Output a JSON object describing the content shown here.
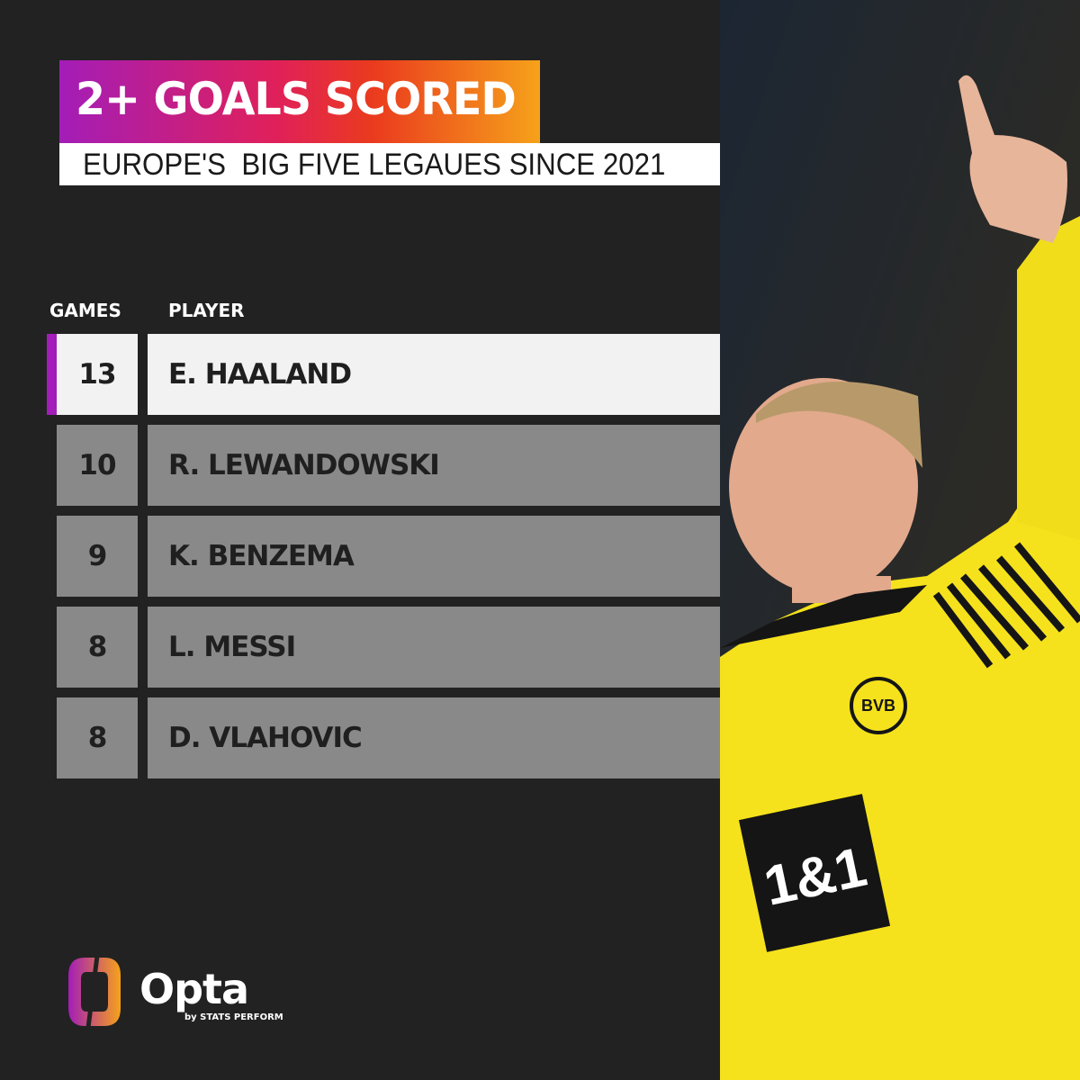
{
  "title": "2+ GOALS SCORED",
  "subtitle": "EUROPE'S  BIG FIVE LEGAUES SINCE 2021",
  "columns": {
    "games": "GAMES",
    "player": "PLAYER"
  },
  "rows": [
    {
      "games": "13",
      "player": "E. HAALAND",
      "highlight": true
    },
    {
      "games": "10",
      "player": "R. LEWANDOWSKI"
    },
    {
      "games": "9",
      "player": "K. BENZEMA"
    },
    {
      "games": "8",
      "player": "L. MESSI"
    },
    {
      "games": "8",
      "player": "D. VLAHOVIC"
    }
  ],
  "brand": {
    "name": "Opta",
    "tagline": "by STATS PERFORM"
  },
  "photo": {
    "sponsor": "1&1",
    "crest": "BVB 09"
  },
  "colors": {
    "background": "#222222",
    "highlight_row": "#f2f2f2",
    "row": "#898989",
    "accent": "#a31db8",
    "jersey": "#f5e21c"
  }
}
